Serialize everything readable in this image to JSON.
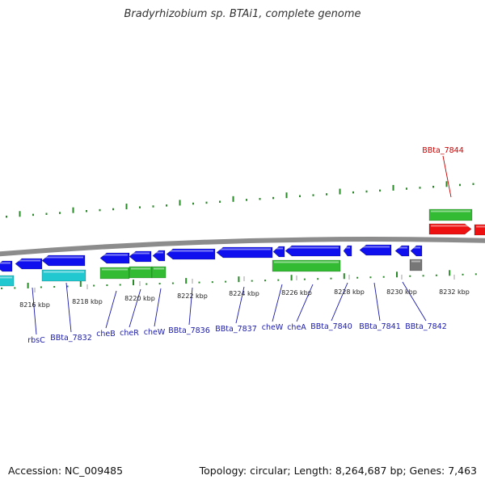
{
  "header": {
    "title": "Bradyrhizobium sp. BTAi1, complete genome"
  },
  "footer": {
    "accession": "Accession: NC_009485",
    "summary": "Topology: circular; Length: 8,264,687 bp; Genes: 7,463"
  },
  "map": {
    "colors": {
      "backbone": "#8c8c8c",
      "forward_ticks": "#2a8a2a",
      "gene_blue": "#1010ee",
      "gene_cyan": "#22c8d0",
      "gene_green": "#33bb33",
      "gene_red": "#ee1111",
      "gene_gray": "#777777",
      "label_blue": "#1a1aaa",
      "label_red": "#cc0000"
    },
    "scale_labels": [
      "8216 kbp",
      "8218 kbp",
      "8220 kbp",
      "8222 kbp",
      "8224 kbp",
      "8226 kbp",
      "8228 kbp",
      "8230 kbp",
      "8232 kbp"
    ],
    "gene_labels": [
      {
        "text": "rbsC",
        "color": "blue"
      },
      {
        "text": "BBta_7832",
        "color": "blue"
      },
      {
        "text": "cheB",
        "color": "blue"
      },
      {
        "text": "cheR",
        "color": "blue"
      },
      {
        "text": "cheW",
        "color": "blue"
      },
      {
        "text": "BBta_7836",
        "color": "blue"
      },
      {
        "text": "BBta_7837",
        "color": "blue"
      },
      {
        "text": "cheW",
        "color": "blue"
      },
      {
        "text": "cheA",
        "color": "blue"
      },
      {
        "text": "BBta_7840",
        "color": "blue"
      },
      {
        "text": "BBta_7841",
        "color": "blue"
      },
      {
        "text": "BBta_7842",
        "color": "blue"
      },
      {
        "text": "BBta_7844",
        "color": "red"
      }
    ]
  }
}
